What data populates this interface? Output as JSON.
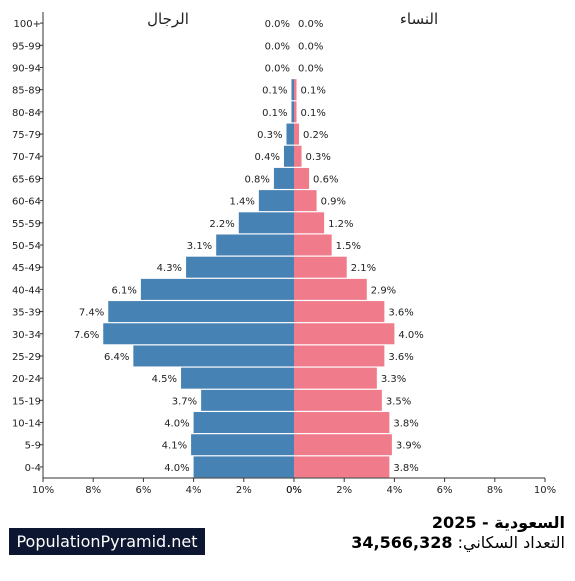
{
  "chart_data": {
    "type": "bar",
    "orientation": "horizontal",
    "categories": [
      "0-4",
      "5-9",
      "10-14",
      "15-19",
      "20-24",
      "25-29",
      "30-34",
      "35-39",
      "40-44",
      "45-49",
      "50-54",
      "55-59",
      "60-64",
      "65-69",
      "70-74",
      "75-79",
      "80-84",
      "85-89",
      "90-94",
      "95-99",
      "100+"
    ],
    "series": [
      {
        "name": "الرجال",
        "color": "#4682b4",
        "values": [
          4.0,
          4.1,
          4.0,
          3.7,
          4.5,
          6.4,
          7.6,
          7.4,
          6.1,
          4.3,
          3.1,
          2.2,
          1.4,
          0.8,
          0.4,
          0.3,
          0.1,
          0.1,
          0.0,
          0.0,
          0.0
        ],
        "labels": [
          "4.0%",
          "4.1%",
          "4.0%",
          "3.7%",
          "4.5%",
          "6.4%",
          "7.6%",
          "7.4%",
          "6.1%",
          "4.3%",
          "3.1%",
          "2.2%",
          "1.4%",
          "0.8%",
          "0.4%",
          "0.3%",
          "0.1%",
          "0.1%",
          "0.0%",
          "0.0%",
          "0.0%"
        ]
      },
      {
        "name": "النساء",
        "color": "#f07b8a",
        "values": [
          3.8,
          3.9,
          3.8,
          3.5,
          3.3,
          3.6,
          4.0,
          3.6,
          2.9,
          2.1,
          1.5,
          1.2,
          0.9,
          0.6,
          0.3,
          0.2,
          0.1,
          0.1,
          0.0,
          0.0,
          0.0
        ],
        "labels": [
          "3.8%",
          "3.9%",
          "3.8%",
          "3.5%",
          "3.3%",
          "3.6%",
          "4.0%",
          "3.6%",
          "2.9%",
          "2.1%",
          "1.5%",
          "1.2%",
          "0.9%",
          "0.6%",
          "0.3%",
          "0.2%",
          "0.1%",
          "0.1%",
          "0.0%",
          "0.0%",
          "0.0%"
        ]
      }
    ],
    "xlim": [
      0,
      10
    ],
    "x_ticks_left": [
      "10%",
      "8%",
      "6%",
      "4%",
      "2%",
      "0%"
    ],
    "x_ticks_right": [
      "0%",
      "2%",
      "4%",
      "6%",
      "8%",
      "10%"
    ],
    "grid": false
  },
  "footer": {
    "title": "السعودية - 2025",
    "population_label": "التعداد السكاني:",
    "population_value": "34,566,328",
    "brand": "PopulationPyramid.net"
  }
}
